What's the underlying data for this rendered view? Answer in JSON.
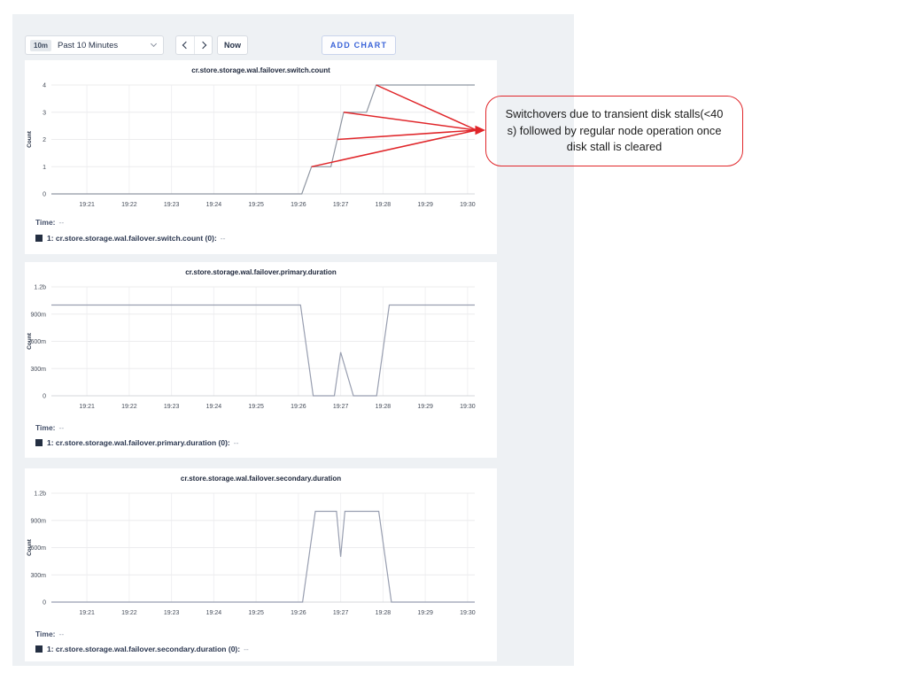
{
  "page": {
    "panel_bg": "#eef1f4",
    "accent_blue": "#3b64d8",
    "annotation_red": "#e0262a",
    "legend_swatch_color": "#242f42"
  },
  "toolbar": {
    "range_badge": "10m",
    "range_label": "Past 10 Minutes",
    "now_label": "Now",
    "add_chart_label": "ADD CHART"
  },
  "annotation": {
    "text": "Switchovers due to transient disk stalls(<40 s) followed by regular node operation once disk stall is cleared"
  },
  "chart_data": [
    {
      "type": "line",
      "title": "cr.store.storage.wal.failover.switch.count",
      "ylabel": "Count",
      "x_ticks": [
        "19:21",
        "19:22",
        "19:23",
        "19:24",
        "19:25",
        "19:26",
        "19:27",
        "19:28",
        "19:29",
        "19:30"
      ],
      "x_domain": [
        0.16,
        10.17
      ],
      "y_ticks": [
        "0",
        "1",
        "2",
        "3",
        "4"
      ],
      "ylim": [
        0,
        4
      ],
      "grid": true,
      "line_color": "#8f96a2",
      "points": [
        [
          0.16,
          0
        ],
        [
          6.08,
          0
        ],
        [
          6.31,
          1
        ],
        [
          6.77,
          1
        ],
        [
          7.07,
          3
        ],
        [
          7.61,
          3
        ],
        [
          7.84,
          4
        ],
        [
          10.17,
          4
        ]
      ],
      "time_label": "Time:",
      "time_value": "--",
      "legend_label": "1: cr.store.storage.wal.failover.switch.count (0):",
      "legend_value": "--"
    },
    {
      "type": "line",
      "title": "cr.store.storage.wal.failover.primary.duration",
      "ylabel": "Count",
      "x_ticks": [
        "19:21",
        "19:22",
        "19:23",
        "19:24",
        "19:25",
        "19:26",
        "19:27",
        "19:28",
        "19:29",
        "19:30"
      ],
      "x_domain": [
        0.16,
        10.17
      ],
      "y_ticks": [
        "0",
        "300m",
        "600m",
        "900m",
        "1.2b"
      ],
      "ylim": [
        0,
        1.2
      ],
      "grid": true,
      "line_color": "#989eb0",
      "points": [
        [
          0.16,
          1.0
        ],
        [
          6.05,
          1.0
        ],
        [
          6.35,
          0
        ],
        [
          6.85,
          0
        ],
        [
          7.0,
          0.48
        ],
        [
          7.3,
          0
        ],
        [
          7.85,
          0
        ],
        [
          8.15,
          1.0
        ],
        [
          10.17,
          1.0
        ]
      ],
      "time_label": "Time:",
      "time_value": "--",
      "legend_label": "1: cr.store.storage.wal.failover.primary.duration (0):",
      "legend_value": "--"
    },
    {
      "type": "line",
      "title": "cr.store.storage.wal.failover.secondary.duration",
      "ylabel": "Count",
      "x_ticks": [
        "19:21",
        "19:22",
        "19:23",
        "19:24",
        "19:25",
        "19:26",
        "19:27",
        "19:28",
        "19:29",
        "19:30"
      ],
      "x_domain": [
        0.16,
        10.17
      ],
      "y_ticks": [
        "0",
        "300m",
        "600m",
        "900m",
        "1.2b"
      ],
      "ylim": [
        0,
        1.2
      ],
      "grid": true,
      "line_color": "#989eb0",
      "points": [
        [
          0.16,
          0
        ],
        [
          6.1,
          0
        ],
        [
          6.4,
          1.0
        ],
        [
          6.9,
          1.0
        ],
        [
          7.0,
          0.5
        ],
        [
          7.1,
          1.0
        ],
        [
          7.9,
          1.0
        ],
        [
          8.2,
          0
        ],
        [
          10.17,
          0
        ]
      ],
      "time_label": "Time:",
      "time_value": "--",
      "legend_label": "1: cr.store.storage.wal.failover.secondary.duration (0):",
      "legend_value": "--"
    }
  ]
}
